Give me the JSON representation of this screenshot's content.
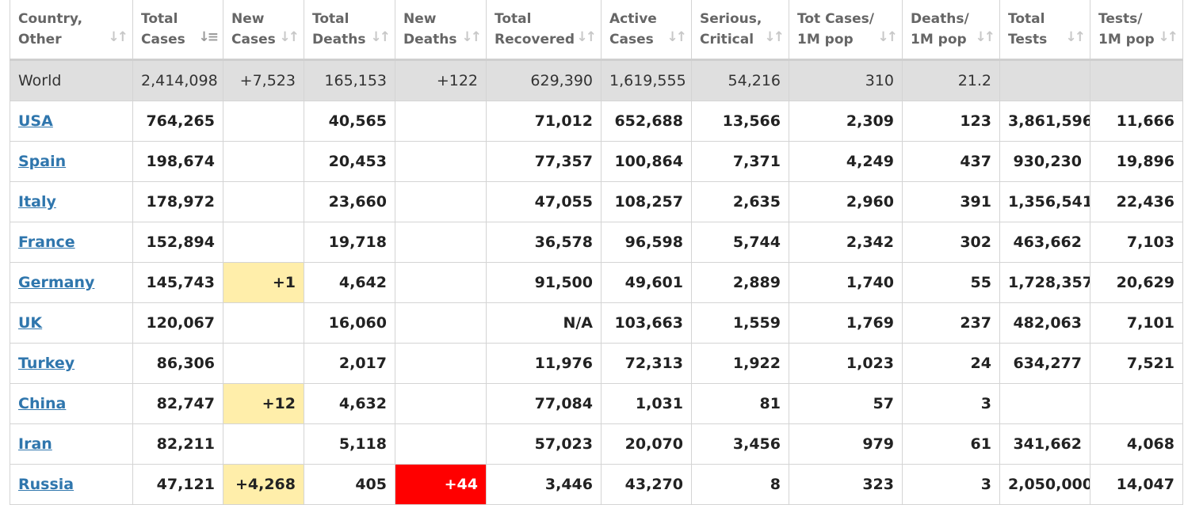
{
  "table": {
    "headers": [
      {
        "line1": "Country,",
        "line2": "Other"
      },
      {
        "line1": "Total",
        "line2": "Cases",
        "sort": "active"
      },
      {
        "line1": "New",
        "line2": "Cases"
      },
      {
        "line1": "Total",
        "line2": "Deaths"
      },
      {
        "line1": "New",
        "line2": "Deaths"
      },
      {
        "line1": "Total",
        "line2": "Recovered"
      },
      {
        "line1": "Active",
        "line2": "Cases"
      },
      {
        "line1": "Serious,",
        "line2": "Critical"
      },
      {
        "line1": "Tot Cases/",
        "line2": "1M pop"
      },
      {
        "line1": "Deaths/",
        "line2": "1M pop"
      },
      {
        "line1": "Total",
        "line2": "Tests"
      },
      {
        "line1": "Tests/",
        "line2": "1M pop"
      }
    ],
    "sort_icon": "⇂↾",
    "world": [
      "World",
      "2,414,098",
      "+7,523",
      "165,153",
      "+122",
      "629,390",
      "1,619,555",
      "54,216",
      "310",
      "21.2",
      "",
      ""
    ],
    "rows": [
      [
        "USA",
        "764,265",
        "",
        "40,565",
        "",
        "71,012",
        "652,688",
        "13,566",
        "2,309",
        "123",
        "3,861,596",
        "11,666"
      ],
      [
        "Spain",
        "198,674",
        "",
        "20,453",
        "",
        "77,357",
        "100,864",
        "7,371",
        "4,249",
        "437",
        "930,230",
        "19,896"
      ],
      [
        "Italy",
        "178,972",
        "",
        "23,660",
        "",
        "47,055",
        "108,257",
        "2,635",
        "2,960",
        "391",
        "1,356,541",
        "22,436"
      ],
      [
        "France",
        "152,894",
        "",
        "19,718",
        "",
        "36,578",
        "96,598",
        "5,744",
        "2,342",
        "302",
        "463,662",
        "7,103"
      ],
      [
        "Germany",
        "145,743",
        "+1",
        "4,642",
        "",
        "91,500",
        "49,601",
        "2,889",
        "1,740",
        "55",
        "1,728,357",
        "20,629"
      ],
      [
        "UK",
        "120,067",
        "",
        "16,060",
        "",
        "N/A",
        "103,663",
        "1,559",
        "1,769",
        "237",
        "482,063",
        "7,101"
      ],
      [
        "Turkey",
        "86,306",
        "",
        "2,017",
        "",
        "11,976",
        "72,313",
        "1,922",
        "1,023",
        "24",
        "634,277",
        "7,521"
      ],
      [
        "China",
        "82,747",
        "+12",
        "4,632",
        "",
        "77,084",
        "1,031",
        "81",
        "57",
        "3",
        "",
        ""
      ],
      [
        "Iran",
        "82,211",
        "",
        "5,118",
        "",
        "57,023",
        "20,070",
        "3,456",
        "979",
        "61",
        "341,662",
        "4,068"
      ],
      [
        "Russia",
        "47,121",
        "+4,268",
        "405",
        "+44",
        "3,446",
        "43,270",
        "8",
        "323",
        "3",
        "2,050,000",
        "14,047"
      ]
    ]
  }
}
